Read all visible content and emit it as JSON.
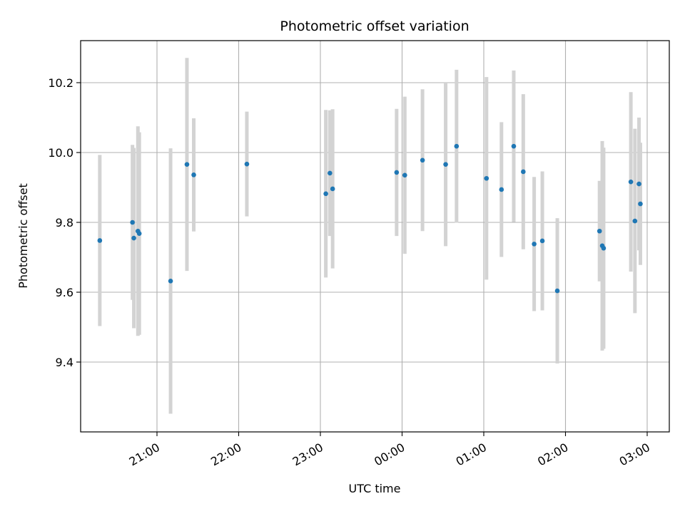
{
  "chart_data": {
    "type": "scatter",
    "title": "Photometric offset variation",
    "xlabel": "UTC time",
    "ylabel": "Photometric offset",
    "x_ticks": [
      "21:00",
      "22:00",
      "23:00",
      "00:00",
      "01:00",
      "02:00",
      "03:00"
    ],
    "y_ticks": [
      "9.4",
      "9.6",
      "9.8",
      "10.0",
      "10.2"
    ],
    "grid": true,
    "colors": {
      "point": "#1f77b4",
      "errorbar": "#d3d3d3",
      "grid": "#b0b0b0"
    },
    "points": [
      {
        "t": "20:18",
        "y": 9.748,
        "err": 0.245
      },
      {
        "t": "20:42",
        "y": 9.8,
        "err": 0.222
      },
      {
        "t": "20:43",
        "y": 9.755,
        "err": 0.258
      },
      {
        "t": "20:46",
        "y": 9.775,
        "err": 0.3
      },
      {
        "t": "20:47",
        "y": 9.768,
        "err": 0.29
      },
      {
        "t": "21:10",
        "y": 9.632,
        "err": 0.38
      },
      {
        "t": "21:22",
        "y": 9.966,
        "err": 0.305
      },
      {
        "t": "21:27",
        "y": 9.936,
        "err": 0.162
      },
      {
        "t": "22:06",
        "y": 9.967,
        "err": 0.15
      },
      {
        "t": "23:04",
        "y": 9.882,
        "err": 0.24
      },
      {
        "t": "23:07",
        "y": 9.941,
        "err": 0.18
      },
      {
        "t": "23:09",
        "y": 9.896,
        "err": 0.228
      },
      {
        "t": "23:56",
        "y": 9.943,
        "err": 0.182
      },
      {
        "t": "00:02",
        "y": 9.935,
        "err": 0.225
      },
      {
        "t": "00:15",
        "y": 9.978,
        "err": 0.203
      },
      {
        "t": "00:32",
        "y": 9.966,
        "err": 0.234
      },
      {
        "t": "00:40",
        "y": 10.018,
        "err": 0.219
      },
      {
        "t": "01:02",
        "y": 9.926,
        "err": 0.29
      },
      {
        "t": "01:13",
        "y": 9.894,
        "err": 0.193
      },
      {
        "t": "01:22",
        "y": 10.018,
        "err": 0.217
      },
      {
        "t": "01:29",
        "y": 9.945,
        "err": 0.222
      },
      {
        "t": "01:37",
        "y": 9.738,
        "err": 0.192
      },
      {
        "t": "01:43",
        "y": 9.747,
        "err": 0.199
      },
      {
        "t": "01:54",
        "y": 9.604,
        "err": 0.208
      },
      {
        "t": "02:25",
        "y": 9.775,
        "err": 0.144
      },
      {
        "t": "02:27",
        "y": 9.733,
        "err": 0.3
      },
      {
        "t": "02:28",
        "y": 9.726,
        "err": 0.288
      },
      {
        "t": "02:48",
        "y": 9.916,
        "err": 0.257
      },
      {
        "t": "02:51",
        "y": 9.804,
        "err": 0.264
      },
      {
        "t": "02:54",
        "y": 9.91,
        "err": 0.19
      },
      {
        "t": "02:55",
        "y": 9.853,
        "err": 0.175
      }
    ]
  }
}
